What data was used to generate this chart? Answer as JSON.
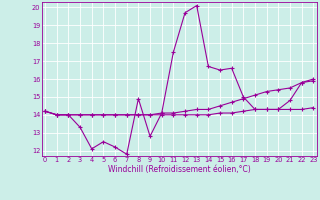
{
  "xlabel": "Windchill (Refroidissement éolien,°C)",
  "bg_color": "#cceee8",
  "line_color": "#990099",
  "grid_color": "#ffffff",
  "xmin": 0,
  "xmax": 23,
  "ymin": 12,
  "ymax": 20,
  "line1_x": [
    0,
    1,
    2,
    3,
    4,
    5,
    6,
    7,
    8,
    9,
    10,
    11,
    12,
    13,
    14,
    15,
    16,
    17,
    18,
    19,
    20,
    21,
    22,
    23
  ],
  "line1_y": [
    14.2,
    14.0,
    14.0,
    13.3,
    12.1,
    12.5,
    12.2,
    11.8,
    14.9,
    12.8,
    14.1,
    17.5,
    19.7,
    20.1,
    16.7,
    16.5,
    16.6,
    15.0,
    14.3,
    14.3,
    14.3,
    14.8,
    15.8,
    15.9
  ],
  "line2_x": [
    0,
    1,
    2,
    3,
    4,
    5,
    6,
    7,
    8,
    9,
    10,
    11,
    12,
    13,
    14,
    15,
    16,
    17,
    18,
    19,
    20,
    21,
    22,
    23
  ],
  "line2_y": [
    14.2,
    14.0,
    14.0,
    14.0,
    14.0,
    14.0,
    14.0,
    14.0,
    14.0,
    14.0,
    14.0,
    14.0,
    14.0,
    14.0,
    14.0,
    14.1,
    14.1,
    14.2,
    14.3,
    14.3,
    14.3,
    14.3,
    14.3,
    14.4
  ],
  "line3_x": [
    0,
    1,
    2,
    3,
    4,
    5,
    6,
    7,
    8,
    9,
    10,
    11,
    12,
    13,
    14,
    15,
    16,
    17,
    18,
    19,
    20,
    21,
    22,
    23
  ],
  "line3_y": [
    14.2,
    14.0,
    14.0,
    14.0,
    14.0,
    14.0,
    14.0,
    14.0,
    14.0,
    14.0,
    14.1,
    14.1,
    14.2,
    14.3,
    14.3,
    14.5,
    14.7,
    14.9,
    15.1,
    15.3,
    15.4,
    15.5,
    15.8,
    16.0
  ],
  "xlabel_fontsize": 5.5,
  "tick_fontsize": 4.8
}
